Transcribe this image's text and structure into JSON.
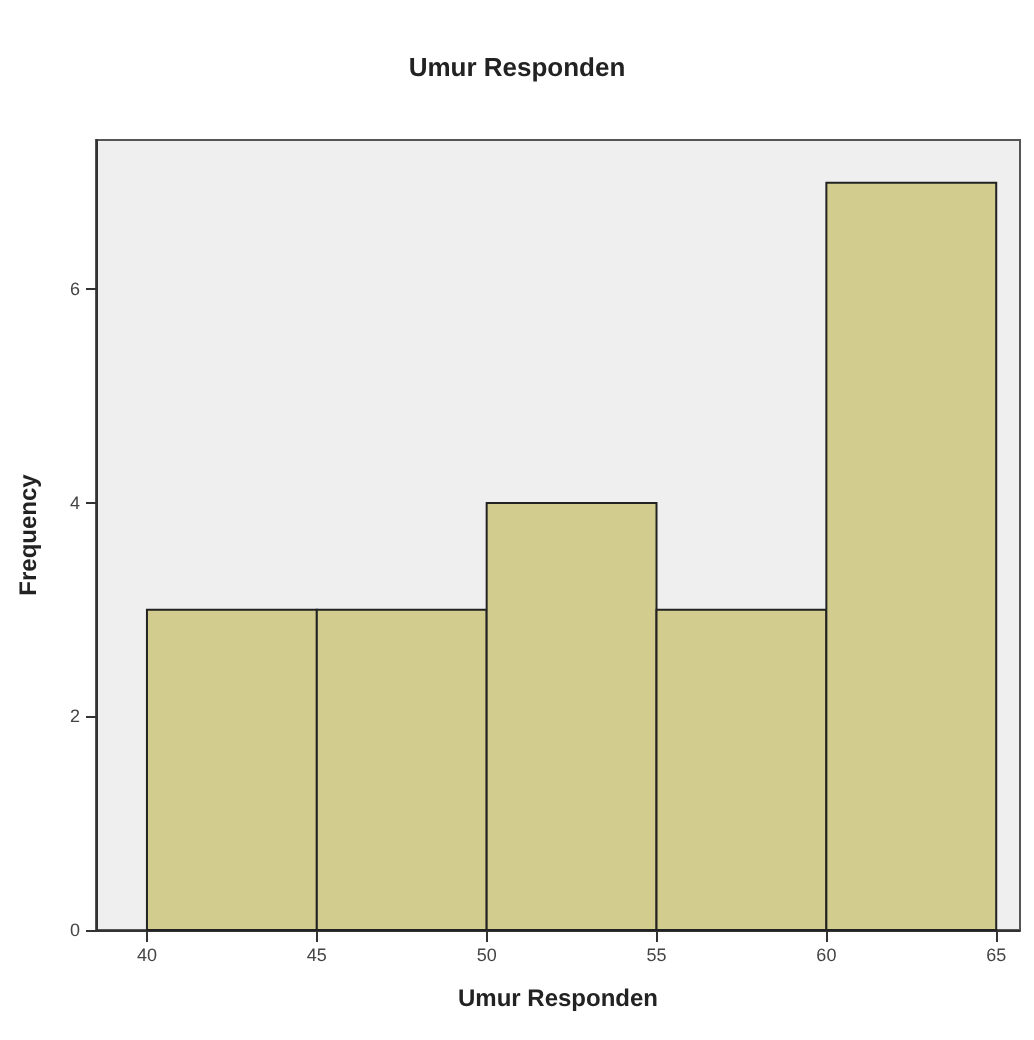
{
  "chart_data": {
    "type": "histogram",
    "title": "Umur Responden",
    "xlabel": "Umur Responden",
    "ylabel": "Frequency",
    "bins": [
      40,
      45,
      50,
      55,
      60,
      65
    ],
    "values": [
      3,
      3,
      4,
      3,
      7
    ],
    "color": "#d3cc8f",
    "xlim": [
      38.5,
      65.7
    ],
    "xticks": [
      40,
      45,
      50,
      55,
      60,
      65
    ],
    "ylim": [
      0,
      7.4
    ],
    "yticks": [
      0,
      2,
      4,
      6
    ],
    "grid": false
  }
}
